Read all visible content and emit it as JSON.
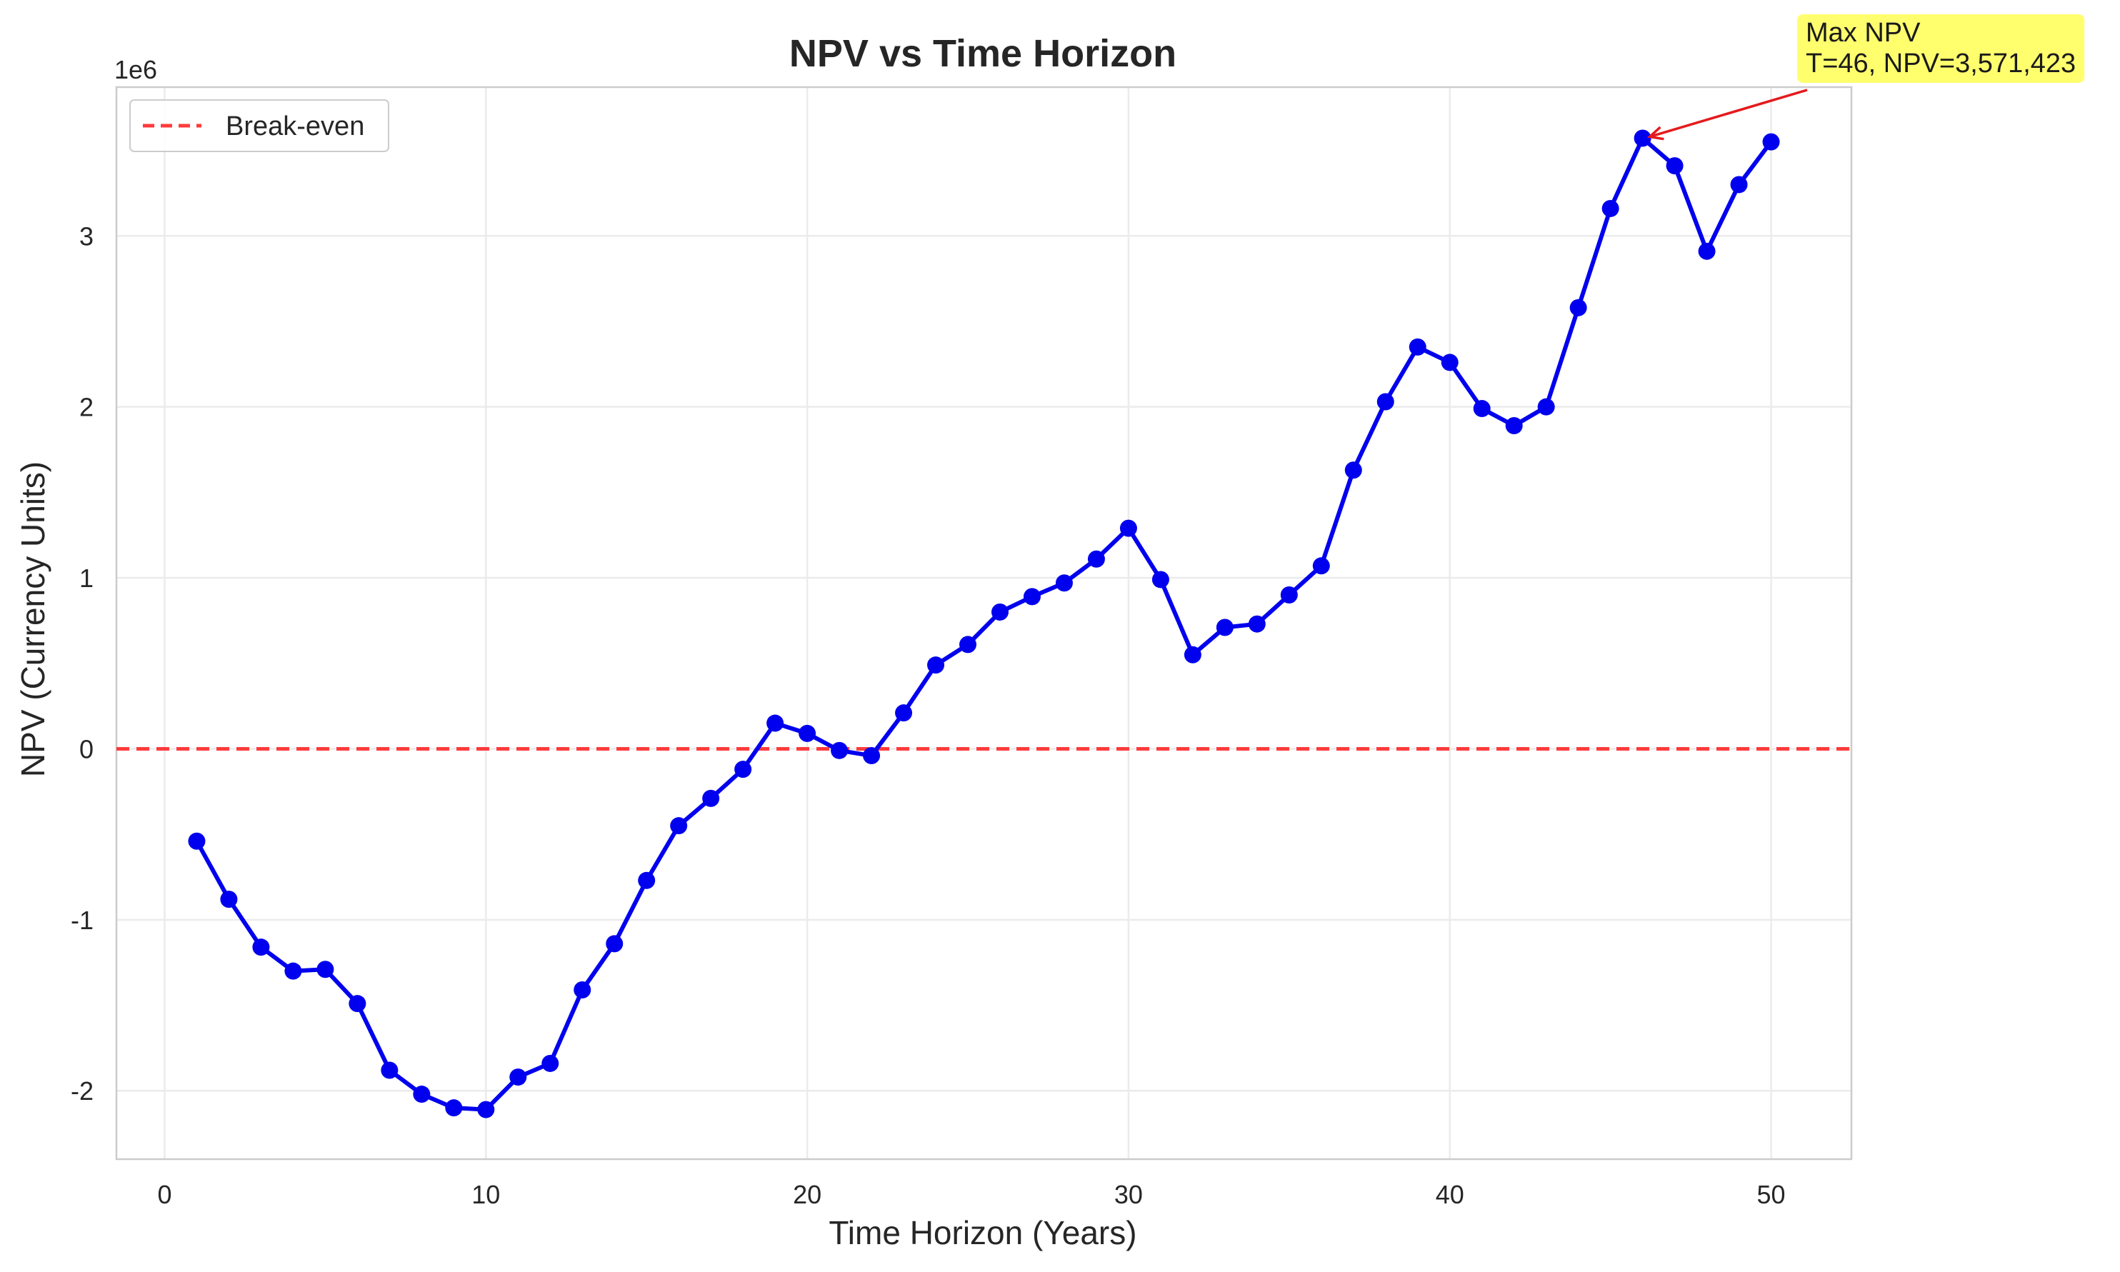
{
  "chart_data": {
    "type": "line",
    "title": "NPV vs Time Horizon",
    "xlabel": "Time Horizon (Years)",
    "ylabel": "NPV (Currency Units)",
    "y_offset_label": "1e6",
    "xlim": [
      -1.5,
      52.5
    ],
    "ylim": [
      -2.4,
      3.87
    ],
    "y_scale": 1000000,
    "x_ticks": [
      0,
      10,
      20,
      30,
      40,
      50
    ],
    "x_tick_labels": [
      "0",
      "10",
      "20",
      "30",
      "40",
      "50"
    ],
    "y_ticks": [
      -2,
      -1,
      0,
      1,
      2,
      3
    ],
    "y_tick_labels": [
      "-2",
      "-1",
      "0",
      "1",
      "2",
      "3"
    ],
    "grid": true,
    "legend_position": "top-left",
    "colors": {
      "series": "#0000ee",
      "break_even": "#ff3b3b",
      "annotation_arrow": "#e41a1c",
      "annotation_box": "#ffff55"
    },
    "series": [
      {
        "name": "",
        "x": [
          1,
          2,
          3,
          4,
          5,
          6,
          7,
          8,
          9,
          10,
          11,
          12,
          13,
          14,
          15,
          16,
          17,
          18,
          19,
          20,
          21,
          22,
          23,
          24,
          25,
          26,
          27,
          28,
          29,
          30,
          31,
          32,
          33,
          34,
          35,
          36,
          37,
          38,
          39,
          40,
          41,
          42,
          43,
          44,
          45,
          46,
          47,
          48,
          49,
          50
        ],
        "y": [
          -0.54,
          -0.88,
          -1.16,
          -1.3,
          -1.29,
          -1.49,
          -1.88,
          -2.02,
          -2.1,
          -2.11,
          -1.92,
          -1.84,
          -1.41,
          -1.14,
          -0.77,
          -0.45,
          -0.29,
          -0.12,
          0.15,
          0.09,
          -0.01,
          -0.04,
          0.21,
          0.49,
          0.61,
          0.8,
          0.89,
          0.97,
          1.11,
          1.29,
          0.99,
          0.55,
          0.71,
          0.73,
          0.9,
          1.07,
          1.63,
          2.03,
          2.35,
          2.26,
          1.99,
          1.89,
          2.0,
          2.58,
          3.16,
          3.571423,
          3.41,
          2.91,
          3.3,
          3.55
        ]
      }
    ],
    "reference_lines": [
      {
        "name": "Break-even",
        "y": 0
      }
    ],
    "annotation": {
      "line1": "Max NPV",
      "line2": "T=46, NPV=3,571,423",
      "x": 46,
      "y": 3.571423
    }
  }
}
